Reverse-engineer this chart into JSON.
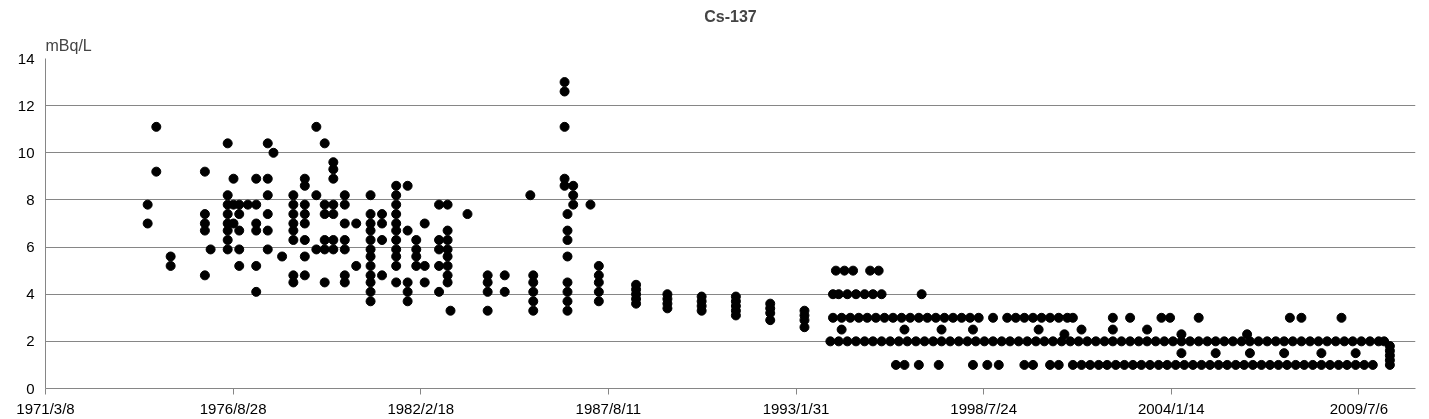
{
  "chart_data": {
    "type": "scatter",
    "title": "Cs-137",
    "ylabel": "mBq/L",
    "marker": "circle",
    "grid": "y",
    "xlim": [
      "1971-03-08",
      "2011-03-01"
    ],
    "xticks": [
      {
        "value": "1971-03-08",
        "label": "1971/3/8"
      },
      {
        "value": "1976-08-28",
        "label": "1976/8/28"
      },
      {
        "value": "1982-02-18",
        "label": "1982/2/18"
      },
      {
        "value": "1987-08-11",
        "label": "1987/8/11"
      },
      {
        "value": "1993-01-31",
        "label": "1993/1/31"
      },
      {
        "value": "1998-07-24",
        "label": "1998/7/24"
      },
      {
        "value": "2004-01-14",
        "label": "2004/1/14"
      },
      {
        "value": "2009-07-06",
        "label": "2009/7/6"
      }
    ],
    "ylim": [
      0,
      14
    ],
    "yticks": [
      0,
      2,
      4,
      6,
      8,
      10,
      12,
      14
    ],
    "series": [
      {
        "color": "#000000",
        "x": [
          "1974-03",
          "1974-03",
          "1974-06",
          "1974-06",
          "1974-11",
          "1974-11",
          "1975-11",
          "1975-11",
          "1975-11",
          "1975-11",
          "1975-11",
          "1976-01",
          "1976-07",
          "1976-07",
          "1976-07",
          "1976-07",
          "1976-07",
          "1976-07",
          "1976-07",
          "1976-07",
          "1976-09",
          "1976-09",
          "1976-09",
          "1976-11",
          "1976-11",
          "1976-11",
          "1976-11",
          "1976-11",
          "1977-02",
          "1977-05",
          "1977-05",
          "1977-05",
          "1977-05",
          "1977-05",
          "1977-05",
          "1977-09",
          "1977-09",
          "1977-09",
          "1977-09",
          "1977-09",
          "1977-09",
          "1977-11",
          "1978-02",
          "1978-06",
          "1978-06",
          "1978-06",
          "1978-06",
          "1978-06",
          "1978-06",
          "1978-06",
          "1978-06",
          "1978-10",
          "1978-10",
          "1978-10",
          "1978-10",
          "1978-10",
          "1978-10",
          "1978-10",
          "1978-10",
          "1979-02",
          "1979-02",
          "1979-02",
          "1979-05",
          "1979-05",
          "1979-05",
          "1979-05",
          "1979-05",
          "1979-05",
          "1979-08",
          "1979-08",
          "1979-08",
          "1979-08",
          "1979-08",
          "1979-08",
          "1979-08",
          "1979-12",
          "1979-12",
          "1979-12",
          "1979-12",
          "1979-12",
          "1979-12",
          "1979-12",
          "1980-04",
          "1980-04",
          "1980-09",
          "1980-09",
          "1980-09",
          "1980-09",
          "1980-09",
          "1980-09",
          "1980-09",
          "1980-09",
          "1980-09",
          "1980-09",
          "1980-09",
          "1980-09",
          "1981-01",
          "1981-01",
          "1981-01",
          "1981-01",
          "1981-06",
          "1981-06",
          "1981-06",
          "1981-06",
          "1981-06",
          "1981-06",
          "1981-06",
          "1981-06",
          "1981-06",
          "1981-06",
          "1981-06",
          "1981-10",
          "1981-10",
          "1981-10",
          "1981-10",
          "1981-10",
          "1982-01",
          "1982-01",
          "1982-01",
          "1982-01",
          "1982-04",
          "1982-04",
          "1982-04",
          "1982-09",
          "1982-09",
          "1982-09",
          "1982-09",
          "1982-09",
          "1982-12",
          "1982-12",
          "1982-12",
          "1982-12",
          "1982-12",
          "1982-12",
          "1982-12",
          "1982-12",
          "1983-01",
          "1983-07",
          "1984-02",
          "1984-02",
          "1984-02",
          "1984-02",
          "1984-08",
          "1984-08",
          "1985-05",
          "1985-06",
          "1985-06",
          "1985-06",
          "1985-06",
          "1985-06",
          "1986-05",
          "1986-05",
          "1986-05",
          "1986-05",
          "1986-05",
          "1986-06",
          "1986-06",
          "1986-06",
          "1986-06",
          "1986-06",
          "1986-06",
          "1986-06",
          "1986-06",
          "1986-08",
          "1986-08",
          "1986-08",
          "1987-02",
          "1987-05",
          "1987-05",
          "1987-05",
          "1987-05",
          "1987-05",
          "1988-06",
          "1988-06",
          "1988-06",
          "1988-06",
          "1988-06",
          "1989-05",
          "1989-05",
          "1989-05",
          "1989-05",
          "1990-05",
          "1990-05",
          "1990-05",
          "1990-05",
          "1991-05",
          "1991-05",
          "1991-05",
          "1991-05",
          "1991-05",
          "1992-05",
          "1992-05",
          "1992-05",
          "1992-05",
          "1993-05",
          "1993-05",
          "1993-05",
          "1993-05"
        ],
        "values": [
          7.8,
          7.0,
          11.1,
          9.2,
          5.6,
          5.2,
          9.2,
          7.4,
          7.0,
          6.7,
          4.8,
          5.9,
          10.4,
          8.2,
          7.8,
          7.4,
          7.0,
          6.7,
          6.3,
          5.9,
          8.9,
          7.8,
          7.0,
          7.8,
          7.4,
          6.7,
          5.9,
          5.2,
          7.8,
          8.9,
          7.8,
          7.0,
          6.7,
          5.2,
          4.1,
          10.4,
          8.9,
          8.2,
          7.4,
          6.7,
          5.9,
          10.0,
          5.6,
          8.2,
          7.8,
          7.4,
          7.0,
          6.7,
          6.3,
          4.8,
          4.5,
          8.9,
          8.6,
          7.8,
          7.4,
          7.0,
          6.3,
          5.6,
          4.8,
          11.1,
          8.2,
          5.9,
          10.4,
          7.8,
          7.4,
          6.3,
          5.9,
          4.5,
          9.6,
          9.3,
          8.9,
          7.8,
          7.4,
          6.3,
          5.9,
          8.2,
          7.8,
          7.0,
          6.3,
          5.9,
          4.8,
          4.5,
          7.0,
          5.2,
          8.2,
          7.4,
          7.0,
          6.7,
          6.3,
          5.9,
          5.6,
          5.2,
          4.8,
          4.5,
          4.1,
          3.7,
          7.4,
          7.0,
          6.3,
          4.8,
          8.6,
          8.2,
          7.8,
          7.4,
          7.0,
          6.7,
          6.3,
          5.9,
          5.6,
          5.2,
          4.5,
          8.6,
          6.7,
          4.5,
          4.1,
          3.7,
          6.3,
          5.9,
          5.6,
          5.2,
          7.0,
          5.2,
          4.5,
          7.8,
          6.3,
          5.9,
          5.2,
          4.1,
          7.8,
          6.7,
          6.3,
          5.9,
          5.6,
          5.2,
          4.8,
          4.5,
          3.3,
          7.4,
          4.8,
          4.5,
          4.1,
          3.3,
          4.8,
          4.1,
          8.2,
          4.8,
          4.5,
          4.1,
          3.7,
          3.3,
          13.0,
          12.6,
          11.1,
          8.9,
          8.6,
          7.4,
          6.7,
          6.3,
          5.6,
          4.5,
          4.1,
          3.7,
          3.3,
          8.6,
          8.2,
          7.8,
          7.8,
          5.2,
          4.8,
          4.5,
          4.1,
          3.7,
          4.4,
          4.2,
          4.0,
          3.8,
          3.6,
          4.0,
          3.8,
          3.6,
          3.4,
          3.9,
          3.7,
          3.5,
          3.3,
          3.9,
          3.7,
          3.5,
          3.3,
          3.1,
          3.6,
          3.4,
          3.2,
          2.9,
          3.3,
          3.1,
          2.9,
          2.6
        ]
      },
      {
        "color": "#000000",
        "x": [
          "1994-04",
          "1994-07",
          "1994-10",
          "1995-04",
          "1995-07",
          "1994-03",
          "1994-05",
          "1994-08",
          "1994-11",
          "1995-02",
          "1995-05",
          "1995-08",
          "1996-10"
        ],
        "values": [
          5,
          5,
          5,
          5,
          5,
          4,
          4,
          4,
          4,
          4,
          4,
          4,
          4
        ]
      },
      {
        "color": "#000000",
        "x": [
          "1994-03",
          "1994-06",
          "1994-09",
          "1994-12",
          "1995-03",
          "1995-06",
          "1995-09",
          "1995-12",
          "1996-03",
          "1996-06",
          "1996-09",
          "1996-12",
          "1997-03",
          "1997-06",
          "1997-09",
          "1997-12",
          "1998-03",
          "1998-06",
          "1998-11",
          "1999-04",
          "1999-07",
          "1999-10",
          "2000-01",
          "2000-04",
          "2000-07",
          "2000-10",
          "2001-01",
          "2001-03",
          "2002-05",
          "2002-11",
          "2003-10",
          "2004-01",
          "2004-11",
          "2007-07",
          "2007-11",
          "2009-01"
        ],
        "values": [
          3,
          3,
          3,
          3,
          3,
          3,
          3,
          3,
          3,
          3,
          3,
          3,
          3,
          3,
          3,
          3,
          3,
          3,
          3,
          3,
          3,
          3,
          3,
          3,
          3,
          3,
          3,
          3,
          3,
          3,
          3,
          3,
          3,
          3,
          3,
          3
        ]
      },
      {
        "color": "#000000",
        "x": [
          "1994-02",
          "1994-05",
          "1994-08",
          "1994-11",
          "1995-02",
          "1995-05",
          "1995-08",
          "1995-11",
          "1996-02",
          "1996-05",
          "1996-08",
          "1996-11",
          "1997-02",
          "1997-05",
          "1997-08",
          "1997-11",
          "1998-02",
          "1998-05",
          "1998-08",
          "1998-11",
          "1999-02",
          "1999-05",
          "1999-08",
          "1999-11",
          "2000-02",
          "2000-05",
          "2000-08",
          "2000-11",
          "2001-02",
          "2001-05",
          "2001-08",
          "2001-11",
          "2002-02",
          "2002-05",
          "2002-08",
          "2002-11",
          "2003-02",
          "2003-05",
          "2003-08",
          "2003-11",
          "2004-02",
          "2004-05",
          "2004-08",
          "2004-11",
          "2005-02",
          "2005-05",
          "2005-08",
          "2005-11",
          "2006-02",
          "2006-05",
          "2006-08",
          "2006-11",
          "2007-02",
          "2007-05",
          "2007-08",
          "2007-11",
          "2008-02",
          "2008-05",
          "2008-08",
          "2008-11",
          "2009-02",
          "2009-05",
          "2009-08",
          "2009-11",
          "2010-02",
          "2010-04"
        ],
        "values": [
          2,
          2,
          2,
          2,
          2,
          2,
          2,
          2,
          2,
          2,
          2,
          2,
          2,
          2,
          2,
          2,
          2,
          2,
          2,
          2,
          2,
          2,
          2,
          2,
          2,
          2,
          2,
          2,
          2,
          2,
          2,
          2,
          2,
          2,
          2,
          2,
          2,
          2,
          2,
          2,
          2,
          2,
          2,
          2,
          2,
          2,
          2,
          2,
          2,
          2,
          2,
          2,
          2,
          2,
          2,
          2,
          2,
          2,
          2,
          2,
          2,
          2,
          2,
          2,
          2,
          2
        ]
      },
      {
        "color": "#000000",
        "x": [
          "1996-01",
          "1996-04",
          "1996-09",
          "1997-04",
          "1998-04",
          "1998-09",
          "1999-01",
          "1999-10",
          "2000-01",
          "2000-07",
          "2000-10",
          "2001-03",
          "2001-06",
          "2001-09",
          "2001-12",
          "2002-03",
          "2002-06",
          "2002-09",
          "2002-12",
          "2003-03",
          "2003-06",
          "2003-09",
          "2003-12",
          "2004-03",
          "2004-06",
          "2004-09",
          "2004-12",
          "2005-03",
          "2005-06",
          "2005-09",
          "2005-12",
          "2006-03",
          "2006-06",
          "2006-09",
          "2006-12",
          "2007-03",
          "2007-06",
          "2007-09",
          "2007-12",
          "2008-03",
          "2008-06",
          "2008-09",
          "2008-12",
          "2009-03",
          "2009-06",
          "2009-09",
          "2009-12"
        ],
        "values": [
          1,
          1,
          1,
          1,
          1,
          1,
          1,
          1,
          1,
          1,
          1,
          1,
          1,
          1,
          1,
          1,
          1,
          1,
          1,
          1,
          1,
          1,
          1,
          1,
          1,
          1,
          1,
          1,
          1,
          1,
          1,
          1,
          1,
          1,
          1,
          1,
          1,
          1,
          1,
          1,
          1,
          1,
          1,
          1,
          1,
          1,
          1
        ]
      },
      {
        "color": "#000000",
        "x": [
          "1994-06",
          "1996-04",
          "1997-05",
          "1998-04",
          "2000-03",
          "2001-06",
          "2002-05",
          "2003-05",
          "2000-12",
          "2004-05",
          "2006-04",
          "2004-05",
          "2005-05",
          "2006-05",
          "2007-05",
          "2008-06",
          "2009-06",
          "2010-06",
          "2010-06",
          "2010-06",
          "2010-06",
          "2010-06"
        ],
        "values": [
          2.5,
          2.5,
          2.5,
          2.5,
          2.5,
          2.5,
          2.5,
          2.5,
          2.3,
          2.3,
          2.3,
          1.5,
          1.5,
          1.5,
          1.5,
          1.5,
          1.5,
          1.0,
          1.2,
          1.4,
          1.6,
          1.8
        ]
      }
    ]
  }
}
